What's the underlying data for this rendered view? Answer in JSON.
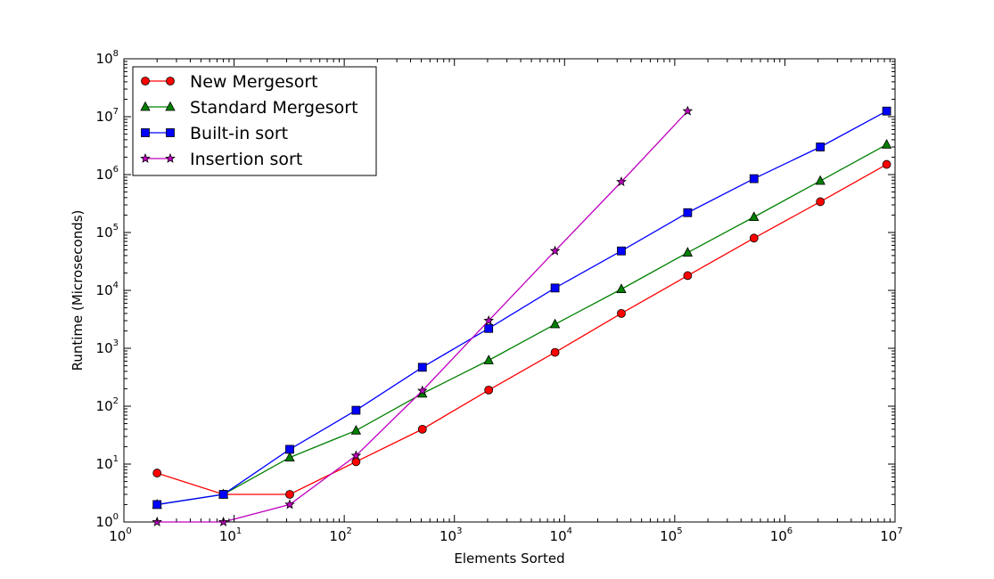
{
  "chart_data": {
    "type": "line",
    "xscale": "log",
    "yscale": "log",
    "xlabel": "Elements Sorted",
    "ylabel": "Runtime (Microseconds)",
    "xlim": [
      1,
      10000000
    ],
    "ylim": [
      1,
      100000000
    ],
    "x_ticks": [
      {
        "base": "10",
        "exp": "0",
        "value": 1
      },
      {
        "base": "10",
        "exp": "1",
        "value": 10
      },
      {
        "base": "10",
        "exp": "2",
        "value": 100
      },
      {
        "base": "10",
        "exp": "3",
        "value": 1000
      },
      {
        "base": "10",
        "exp": "4",
        "value": 10000
      },
      {
        "base": "10",
        "exp": "5",
        "value": 100000
      },
      {
        "base": "10",
        "exp": "6",
        "value": 1000000
      },
      {
        "base": "10",
        "exp": "7",
        "value": 10000000
      }
    ],
    "y_ticks": [
      {
        "base": "10",
        "exp": "0",
        "value": 1
      },
      {
        "base": "10",
        "exp": "1",
        "value": 10
      },
      {
        "base": "10",
        "exp": "2",
        "value": 100
      },
      {
        "base": "10",
        "exp": "3",
        "value": 1000
      },
      {
        "base": "10",
        "exp": "4",
        "value": 10000
      },
      {
        "base": "10",
        "exp": "5",
        "value": 100000
      },
      {
        "base": "10",
        "exp": "6",
        "value": 1000000
      },
      {
        "base": "10",
        "exp": "7",
        "value": 10000000
      },
      {
        "base": "10",
        "exp": "8",
        "value": 100000000
      }
    ],
    "grid": false,
    "legend_position": "top-left",
    "series": [
      {
        "name": "New Mergesort",
        "color": "#ff0000",
        "marker": "circle",
        "x": [
          2,
          8,
          32,
          128,
          512,
          2048,
          8192,
          32768,
          131072,
          524288,
          2097152,
          8388608
        ],
        "y": [
          7,
          3,
          3,
          11,
          40,
          190,
          850,
          4000,
          18000,
          80000,
          340000,
          1500000
        ]
      },
      {
        "name": "Standard Mergesort",
        "color": "#008000",
        "marker": "triangle",
        "x": [
          2,
          8,
          32,
          128,
          512,
          2048,
          8192,
          32768,
          131072,
          524288,
          2097152,
          8388608
        ],
        "y": [
          2,
          3,
          13,
          38,
          165,
          620,
          2600,
          10500,
          45000,
          185000,
          780000,
          3300000
        ]
      },
      {
        "name": "Built-in sort",
        "color": "#0000ff",
        "marker": "square",
        "x": [
          2,
          8,
          32,
          128,
          512,
          2048,
          8192,
          32768,
          131072,
          524288,
          2097152,
          8388608
        ],
        "y": [
          2,
          3,
          18,
          85,
          470,
          2200,
          11000,
          48000,
          220000,
          850000,
          3000000,
          12500000
        ]
      },
      {
        "name": "Insertion sort",
        "color": "#bf00bf",
        "marker": "star",
        "x": [
          2,
          8,
          32,
          128,
          512,
          2048,
          8192,
          32768,
          131072
        ],
        "y": [
          1,
          1,
          2,
          14,
          185,
          3000,
          48000,
          750000,
          12500000
        ]
      }
    ]
  }
}
